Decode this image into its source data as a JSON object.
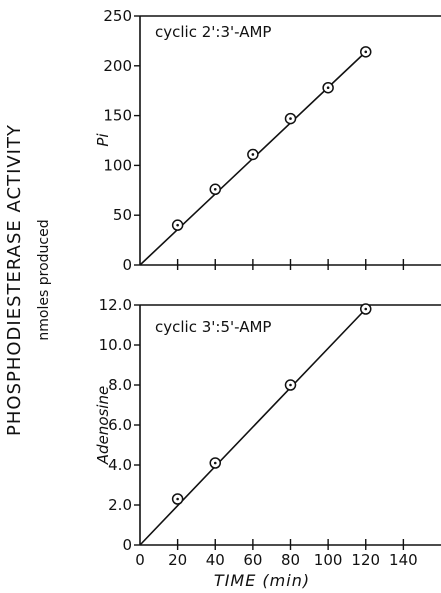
{
  "figure": {
    "outer_ylabel": "PHOSPHODIESTERASE ACTIVITY",
    "outer_ylabel_sub": "nmoles produced",
    "xlabel": "TIME (min)"
  },
  "chart_data": [
    {
      "type": "scatter",
      "title": "cyclic 2':3'-AMP",
      "xlabel": "TIME (min)",
      "ylabel": "Pi",
      "xlim": [
        0,
        160
      ],
      "ylim": [
        0,
        250
      ],
      "xticks": [],
      "yticks": [
        0,
        50,
        100,
        150,
        200,
        250
      ],
      "ytick_labels": [
        "0",
        "50",
        "100",
        "150",
        "200",
        "250"
      ],
      "grid": false,
      "series": [
        {
          "x": [
            20,
            40,
            60,
            80,
            100,
            120
          ],
          "y": [
            40,
            76,
            111,
            147,
            178,
            214
          ]
        }
      ],
      "fit_line": {
        "x": [
          0,
          120
        ],
        "y": [
          0,
          214
        ]
      }
    },
    {
      "type": "scatter",
      "title": "cyclic 3':5'-AMP",
      "xlabel": "TIME (min)",
      "ylabel": "Adenosine",
      "xlim": [
        0,
        160
      ],
      "ylim": [
        0,
        12.0
      ],
      "xticks": [
        0,
        20,
        40,
        60,
        80,
        100,
        120,
        140
      ],
      "xtick_labels": [
        "0",
        "20",
        "40",
        "60",
        "80",
        "100",
        "120",
        "140"
      ],
      "yticks": [
        0,
        2.0,
        4.0,
        6.0,
        8.0,
        10.0,
        12.0
      ],
      "ytick_labels": [
        "0",
        "2.0",
        "4.0",
        "6.0",
        "8.0",
        "10.0",
        "12.0"
      ],
      "grid": false,
      "series": [
        {
          "x": [
            20,
            40,
            80,
            120
          ],
          "y": [
            2.3,
            4.1,
            8.0,
            11.8
          ]
        }
      ],
      "fit_line": {
        "x": [
          0,
          120
        ],
        "y": [
          0,
          11.8
        ]
      }
    }
  ]
}
